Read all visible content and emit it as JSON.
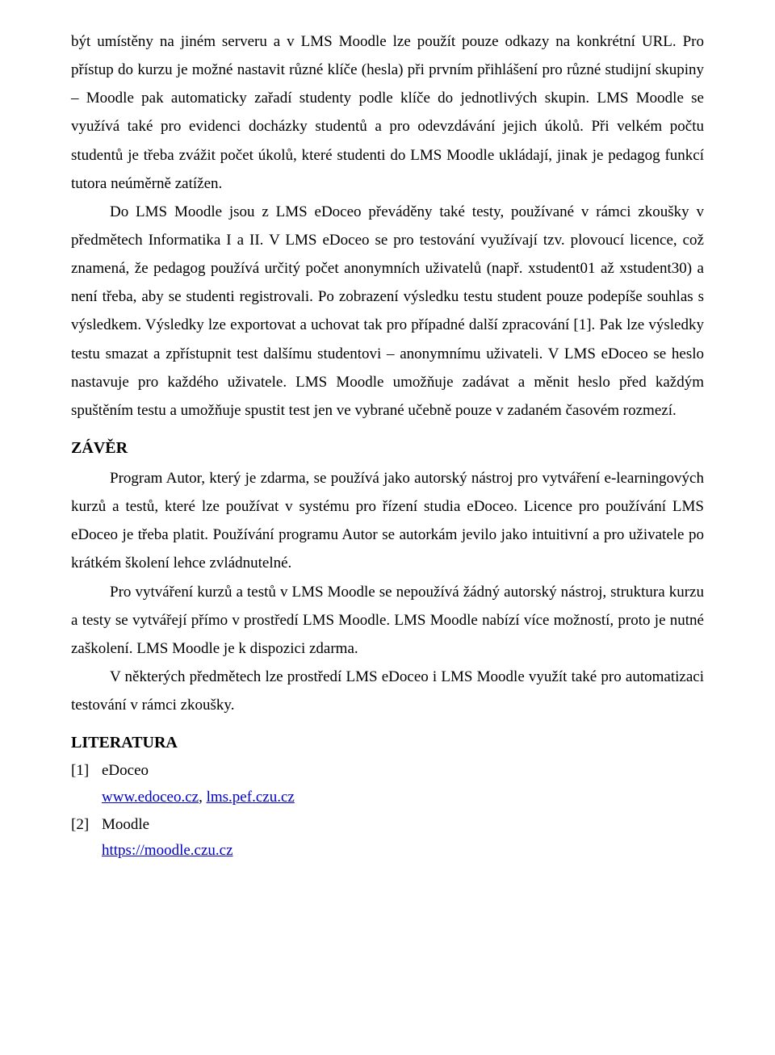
{
  "p1": "být umístěny na jiném serveru a v LMS Moodle lze použít pouze odkazy na konkrétní URL. Pro přístup do kurzu je možné nastavit různé klíče (hesla) při prvním přihlášení pro různé studijní skupiny – Moodle pak automaticky zařadí studenty podle klíče do jednotlivých skupin. LMS Moodle se využívá také pro evidenci docházky studentů a pro odevzdávání jejich úkolů. Při velkém počtu studentů je třeba zvážit počet úkolů, které studenti do LMS Moodle ukládají, jinak je pedagog funkcí tutora neúměrně zatížen.",
  "p2": "Do LMS Moodle jsou z LMS eDoceo převáděny také testy, používané v rámci zkoušky v předmětech Informatika I a II. V LMS eDoceo se pro testování využívají tzv. plovoucí licence, což znamená, že pedagog používá určitý počet anonymních uživatelů (např. xstudent01 až xstudent30) a není třeba, aby se studenti registrovali. Po zobrazení výsledku testu student pouze podepíše souhlas s výsledkem. Výsledky lze exportovat a uchovat tak pro případné další zpracování [1]. Pak lze výsledky testu smazat a zpřístupnit test dalšímu studentovi – anonymnímu uživateli. V LMS eDoceo se heslo nastavuje pro každého uživatele. LMS Moodle umožňuje zadávat a měnit heslo před každým spuštěním testu a umožňuje spustit test jen ve vybrané učebně pouze v zadaném časovém rozmezí.",
  "h_zaver": "ZÁVĚR",
  "p3": "Program Autor, který je zdarma, se používá jako autorský nástroj pro vytváření e-learningových kurzů a testů, které lze používat v systému pro řízení studia eDoceo. Licence pro používání LMS eDoceo je třeba platit. Používání programu Autor se autorkám jevilo jako intuitivní a pro uživatele po krátkém školení lehce zvládnutelné.",
  "p4": "Pro vytváření kurzů a testů v LMS Moodle se nepoužívá žádný autorský nástroj, struktura kurzu a testy se vytvářejí přímo v prostředí LMS Moodle. LMS Moodle nabízí více možností, proto je nutné zaškolení. LMS Moodle je k dispozici zdarma.",
  "p5": "V některých předmětech lze prostředí LMS eDoceo i LMS Moodle využít také pro automatizaci testování v rámci zkoušky.",
  "h_lit": "LITERATURA",
  "refs": [
    {
      "num": "[1]",
      "label": "eDoceo",
      "links_html": "<a class=\"lnk\" href=\"#\" data-name=\"ref-link-edoceo-1\" data-interactable=\"true\">www.edoceo.cz</a>, <a class=\"lnk\" href=\"#\" data-name=\"ref-link-edoceo-2\" data-interactable=\"true\">lms.pef.czu.cz</a>"
    },
    {
      "num": "[2]",
      "label": "Moodle",
      "links_html": "<a class=\"lnk\" href=\"#\" data-name=\"ref-link-moodle\" data-interactable=\"true\">https://moodle.czu.cz</a>"
    }
  ]
}
